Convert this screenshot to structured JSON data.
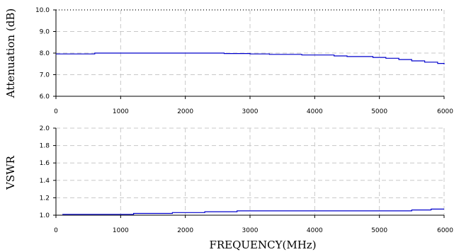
{
  "chart_data": [
    {
      "type": "line",
      "ylabel": "Attenuation (dB)",
      "xlabel": "",
      "xlim": [
        0,
        6000
      ],
      "ylim": [
        6.0,
        10.0
      ],
      "x_ticks": [
        "0",
        "1000",
        "2000",
        "3000",
        "4000",
        "5000",
        "6000"
      ],
      "y_ticks": [
        "6.0",
        "7.0",
        "8.0",
        "9.0",
        "10.0"
      ],
      "grid": true,
      "series": [
        {
          "color": "#0000cc",
          "x": [
            0,
            600,
            1000,
            1500,
            2000,
            2500,
            2600,
            3000,
            3300,
            3800,
            4300,
            4500,
            4900,
            5100,
            5300,
            5500,
            5700,
            5900,
            6000
          ],
          "y": [
            7.96,
            8.0,
            8.0,
            8.0,
            8.0,
            8.0,
            7.98,
            7.96,
            7.94,
            7.91,
            7.87,
            7.84,
            7.8,
            7.76,
            7.7,
            7.64,
            7.58,
            7.52,
            7.48
          ]
        }
      ]
    },
    {
      "type": "line",
      "ylabel": "VSWR",
      "xlabel": "FREQUENCY(MHz)",
      "xlim": [
        0,
        6000
      ],
      "ylim": [
        1.0,
        2.0
      ],
      "x_ticks": [
        "0",
        "1000",
        "2000",
        "3000",
        "4000",
        "5000",
        "6000"
      ],
      "y_ticks": [
        "1.0",
        "1.2",
        "1.4",
        "1.6",
        "1.8",
        "2.0"
      ],
      "grid": true,
      "series": [
        {
          "color": "#0000cc",
          "x": [
            100,
            800,
            1200,
            1800,
            2300,
            2800,
            3500,
            4200,
            4600,
            5000,
            5500,
            5800,
            6000
          ],
          "y": [
            1.01,
            1.01,
            1.02,
            1.03,
            1.04,
            1.05,
            1.05,
            1.05,
            1.05,
            1.05,
            1.06,
            1.07,
            1.07
          ]
        }
      ]
    }
  ]
}
